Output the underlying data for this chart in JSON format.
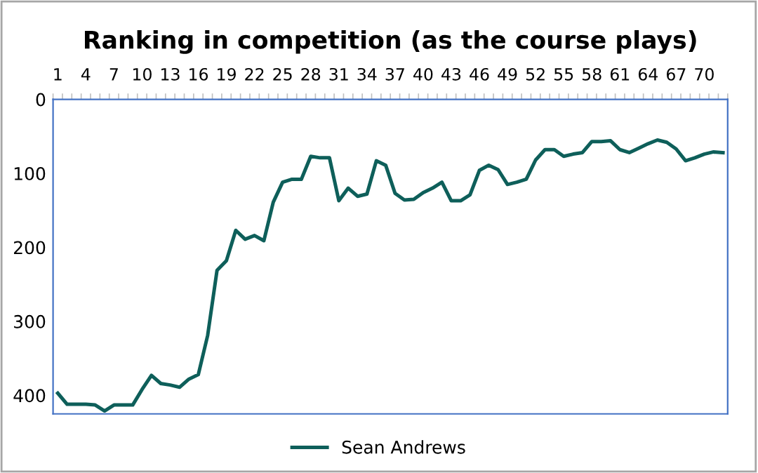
{
  "chart_data": {
    "type": "line",
    "title": "Ranking in competition (as the course plays)",
    "categories": [
      "1",
      null,
      null,
      "4",
      null,
      null,
      "7",
      null,
      null,
      "10",
      null,
      null,
      "13",
      null,
      null,
      "16",
      null,
      null,
      "19",
      null,
      null,
      "22",
      null,
      null,
      "25",
      null,
      null,
      "28",
      null,
      null,
      "31",
      null,
      null,
      "34",
      null,
      null,
      "37",
      null,
      null,
      "40",
      null,
      null,
      "43",
      null,
      null,
      "46",
      null,
      null,
      "49",
      null,
      null,
      "52",
      null,
      null,
      "55",
      null,
      null,
      "58",
      null,
      null,
      "61",
      null,
      null,
      "64",
      null,
      null,
      "67",
      null,
      null,
      "70",
      null,
      null
    ],
    "series": [
      {
        "name": "Sean Andrews",
        "color": "#0e5f5a",
        "values": [
          397,
          412,
          412,
          412,
          413,
          421,
          413,
          413,
          413,
          392,
          373,
          384,
          386,
          389,
          378,
          372,
          319,
          231,
          218,
          177,
          189,
          184,
          191,
          139,
          112,
          108,
          108,
          77,
          79,
          79,
          137,
          120,
          131,
          128,
          83,
          89,
          127,
          136,
          135,
          126,
          120,
          112,
          137,
          137,
          129,
          96,
          89,
          95,
          115,
          112,
          108,
          82,
          68,
          68,
          77,
          74,
          72,
          57,
          57,
          56,
          68,
          72,
          66,
          60,
          55,
          58,
          67,
          83,
          79,
          74,
          71,
          72
        ]
      }
    ],
    "ylim": [
      425,
      0
    ],
    "yticks": [
      0,
      100,
      200,
      300,
      400
    ],
    "grid": false,
    "legend": "bottom",
    "marker": "none",
    "line_style": "solid"
  }
}
